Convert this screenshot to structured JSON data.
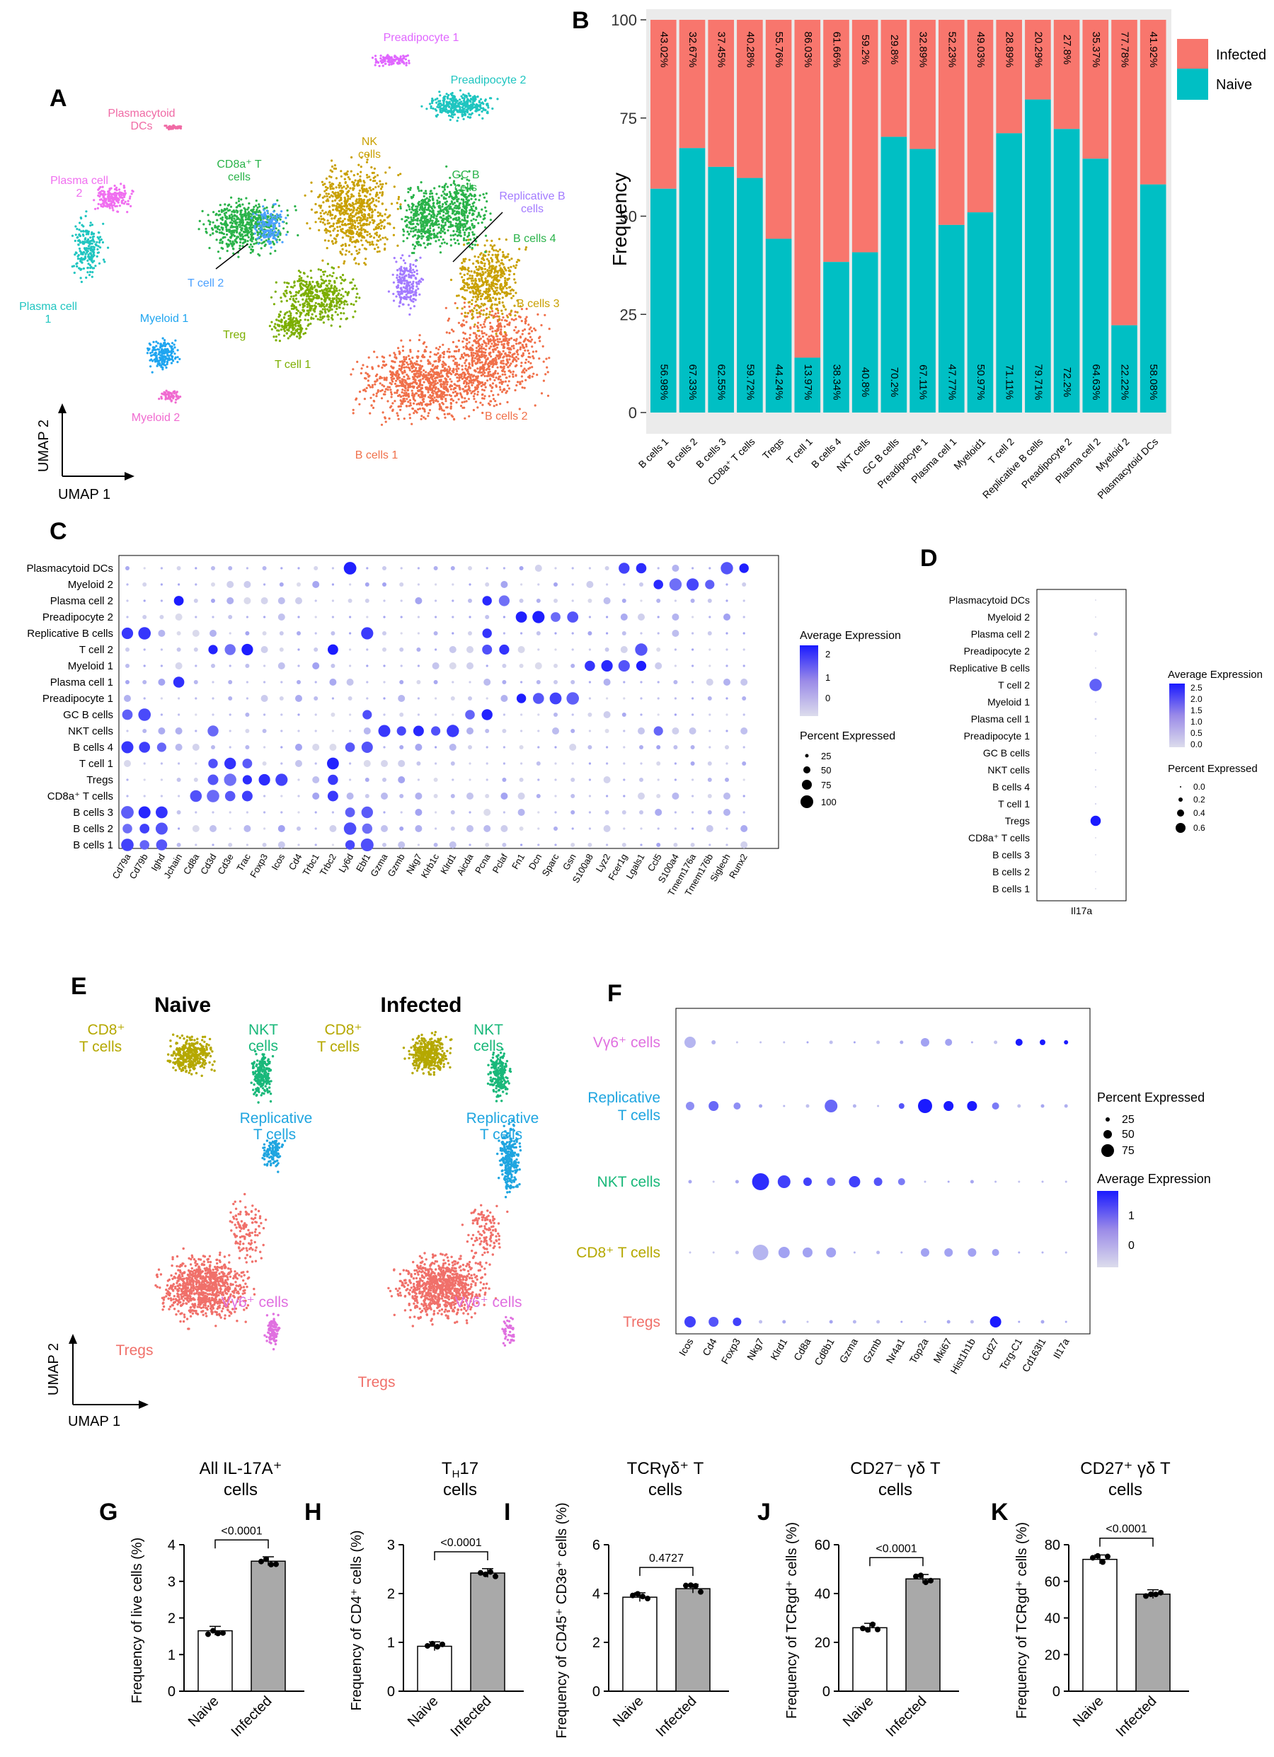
{
  "panels": {
    "A": "A",
    "B": "B",
    "C": "C",
    "D": "D",
    "E": "E",
    "F": "F",
    "G": "G",
    "H": "H",
    "I": "I",
    "J": "J",
    "K": "K"
  },
  "colors": {
    "infected": "#F8766D",
    "naive": "#00BFC4",
    "bar_naive": "#ffffff",
    "bar_infected": "#a9a9a9",
    "dot_low": "#d9d9ec",
    "dot_high": "#0000ff"
  },
  "panel_a": {
    "axis_y": "UMAP 2",
    "axis_x": "UMAP 1",
    "clusters": [
      {
        "label": "Preadipocyte 1",
        "color": "#e066ff"
      },
      {
        "label": "Preadipocyte 2",
        "color": "#1fc5c0"
      },
      {
        "label": "Plasmacytoid DCs",
        "color": "#f06aa5"
      },
      {
        "label": "NK cells",
        "color": "#c9a000"
      },
      {
        "label": "CD8a⁺ T cells",
        "color": "#2ab34a"
      },
      {
        "label": "GC B cells",
        "color": "#2ab34a"
      },
      {
        "label": "Replicative B cells",
        "color": "#a37bff"
      },
      {
        "label": "Plasma cell 2",
        "color": "#f06ff0"
      },
      {
        "label": "B cells 4",
        "color": "#2ab34a"
      },
      {
        "label": "T cell 2",
        "color": "#4aa0ff"
      },
      {
        "label": "B cells 3",
        "color": "#c9a000"
      },
      {
        "label": "Plasma cell 1",
        "color": "#1fc5c0"
      },
      {
        "label": "Myeloid 1",
        "color": "#1fa5f0"
      },
      {
        "label": "Treg",
        "color": "#7cae00"
      },
      {
        "label": "T cell 1",
        "color": "#7cae00"
      },
      {
        "label": "Myeloid 2",
        "color": "#f06ad0"
      },
      {
        "label": "B cells 2",
        "color": "#f0704a"
      },
      {
        "label": "B cells 1",
        "color": "#f0704a"
      }
    ]
  },
  "chart_data": [
    {
      "id": "B",
      "type": "bar",
      "stacked": true,
      "ylabel": "Frequency",
      "ylim": [
        0,
        100
      ],
      "yticks": [
        0,
        25,
        50,
        75,
        100
      ],
      "legend": [
        "Infected",
        "Naive"
      ],
      "categories": [
        "B cells 1",
        "B cells 2",
        "B cells 3",
        "CD8a⁺ T cells",
        "Tregs",
        "T cell 1",
        "B cells 4",
        "NKT cells",
        "GC B cells",
        "Preadipocyte 1",
        "Plasma cell 1",
        "Myeloid1",
        "T cell 2",
        "Replicative B cells",
        "Preadipocyte 2",
        "Plasma cell 2",
        "Myeloid 2",
        "Plasmacytoid DCs"
      ],
      "series": [
        {
          "name": "Naive",
          "values": [
            56.98,
            67.33,
            62.55,
            59.72,
            44.24,
            13.97,
            38.34,
            40.8,
            70.2,
            67.11,
            47.77,
            50.97,
            71.11,
            79.71,
            72.2,
            64.63,
            22.22,
            58.08
          ],
          "labels": [
            "56.98%",
            "67.33%",
            "62.55%",
            "59.72%",
            "44.24%",
            "13.97%",
            "38.34%",
            "40.8%",
            "70.2%",
            "67.11%",
            "47.77%",
            "50.97%",
            "71.11%",
            "79.71%",
            "72.2%",
            "64.63%",
            "22.22%",
            "58.08%"
          ]
        },
        {
          "name": "Infected",
          "values": [
            43.02,
            32.67,
            37.45,
            40.28,
            55.76,
            86.03,
            61.66,
            59.2,
            29.8,
            32.89,
            52.23,
            49.03,
            28.89,
            20.29,
            27.8,
            35.37,
            77.78,
            41.92
          ],
          "labels": [
            "43.02%",
            "32.67%",
            "37.45%",
            "40.28%",
            "55.76%",
            "86.03%",
            "61.66%",
            "59.2%",
            "29.8%",
            "32.89%",
            "52.23%",
            "49.03%",
            "28.89%",
            "20.29%",
            "27.8%",
            "35.37%",
            "77.78%",
            "41.92%"
          ]
        }
      ]
    },
    {
      "id": "C",
      "type": "dot",
      "rows": [
        "Plasmacytoid DCs",
        "Myeloid 2",
        "Plasma cell 2",
        "Preadipocyte 2",
        "Replicative B cells",
        "T cell 2",
        "Myeloid 1",
        "Plasma cell 1",
        "Preadipocyte 1",
        "GC B cells",
        "NKT cells",
        "B cells 4",
        "T cell 1",
        "Tregs",
        "CD8a⁺ T cells",
        "B cells 3",
        "B cells 2",
        "B cells 1"
      ],
      "genes": [
        "Cd79a",
        "Cd79b",
        "Ighd",
        "Jchain",
        "Cd8a",
        "Cd3d",
        "Cd3e",
        "Trac",
        "Foxp3",
        "Icos",
        "Cd4",
        "Trbc1",
        "Trbc2",
        "Ly6d",
        "Ebf1",
        "Gzma",
        "Gzmb",
        "Nkg7",
        "Klrb1c",
        "Klrd1",
        "Aicda",
        "Pcna",
        "Pclaf",
        "Fn1",
        "Dcn",
        "Sparc",
        "Gsn",
        "S100a8",
        "Lyz2",
        "Fcer1g",
        "Lgals1",
        "Ccl5",
        "S100a4",
        "Tmem176a",
        "Tmem176b",
        "Siglech",
        "Runx2"
      ],
      "high": [
        {
          "row": "Plasmacytoid DCs",
          "genes": [
            "Ly6d",
            "Siglech",
            "Runx2",
            "Lgals1",
            "Fcer1g"
          ]
        },
        {
          "row": "Myeloid 2",
          "genes": [
            "Ccl5",
            "S100a4",
            "Tmem176a",
            "Tmem176b"
          ]
        },
        {
          "row": "Plasma cell 2",
          "genes": [
            "Jchain",
            "Pcna",
            "Pclaf"
          ]
        },
        {
          "row": "Preadipocyte 2",
          "genes": [
            "Fn1",
            "Dcn",
            "Sparc",
            "Gsn"
          ]
        },
        {
          "row": "Replicative B cells",
          "genes": [
            "Cd79a",
            "Cd79b",
            "Pcna",
            "Ebf1"
          ]
        },
        {
          "row": "T cell 2",
          "genes": [
            "Cd3d",
            "Cd3e",
            "Trac",
            "Trbc2",
            "Pcna",
            "Pclaf",
            "Lgals1"
          ]
        },
        {
          "row": "Myeloid 1",
          "genes": [
            "S100a8",
            "Lyz2",
            "Fcer1g",
            "Lgals1"
          ]
        },
        {
          "row": "Plasma cell 1",
          "genes": [
            "Jchain"
          ]
        },
        {
          "row": "Preadipocyte 1",
          "genes": [
            "Fn1",
            "Dcn",
            "Sparc",
            "Gsn"
          ]
        },
        {
          "row": "GC B cells",
          "genes": [
            "Cd79a",
            "Cd79b",
            "Aicda",
            "Pcna",
            "Ebf1"
          ]
        },
        {
          "row": "NKT cells",
          "genes": [
            "Nkg7",
            "Klrb1c",
            "Klrd1",
            "Gzma",
            "Gzmb",
            "Ccl5",
            "Cd3d"
          ]
        },
        {
          "row": "B cells 4",
          "genes": [
            "Cd79a",
            "Cd79b",
            "Ighd",
            "Ly6d",
            "Ebf1"
          ]
        },
        {
          "row": "T cell 1",
          "genes": [
            "Cd3d",
            "Cd3e",
            "Trac",
            "Trbc2"
          ]
        },
        {
          "row": "Tregs",
          "genes": [
            "Cd3d",
            "Cd3e",
            "Trac",
            "Foxp3",
            "Icos",
            "Trbc2"
          ]
        },
        {
          "row": "CD8a⁺ T cells",
          "genes": [
            "Cd8a",
            "Cd3d",
            "Cd3e",
            "Trac",
            "Trbc2"
          ]
        },
        {
          "row": "B cells 3",
          "genes": [
            "Cd79a",
            "Cd79b",
            "Ighd",
            "Ly6d",
            "Ebf1"
          ]
        },
        {
          "row": "B cells 2",
          "genes": [
            "Cd79a",
            "Cd79b",
            "Ighd",
            "Ly6d",
            "Ebf1"
          ]
        },
        {
          "row": "B cells 1",
          "genes": [
            "Cd79a",
            "Cd79b",
            "Ighd",
            "Ly6d",
            "Ebf1"
          ]
        }
      ],
      "legend_expression_title": "Average Expression",
      "legend_expression_ticks": [
        "2",
        "1",
        "0"
      ],
      "legend_percent_title": "Percent Expressed",
      "legend_percent_values": [
        "25",
        "50",
        "75",
        "100"
      ]
    },
    {
      "id": "D",
      "type": "dot",
      "gene": "Il17a",
      "rows": [
        "Plasmacytoid DCs",
        "Myeloid 2",
        "Plasma cell 2",
        "Preadipocyte 2",
        "Replicative B cells",
        "T cell 2",
        "Myeloid 1",
        "Plasma cell 1",
        "Preadipocyte 1",
        "GC B cells",
        "NKT cells",
        "B cells 4",
        "T cell 1",
        "Tregs",
        "CD8a⁺ T cells",
        "B cells 3",
        "B cells 2",
        "B cells 1"
      ],
      "pct": [
        0.0,
        0.0,
        0.12,
        0.0,
        0.0,
        0.55,
        0.0,
        0.03,
        0.0,
        0.01,
        0.01,
        0.01,
        0.01,
        0.45,
        0.0,
        0.0,
        0.0,
        0.0
      ],
      "expr": [
        0.0,
        0.0,
        0.3,
        0.0,
        0.0,
        1.6,
        0.0,
        0.2,
        0.0,
        0.1,
        0.1,
        0.1,
        0.1,
        2.5,
        0.0,
        0.0,
        0.0,
        0.0
      ],
      "legend_expression_title": "Average Expression",
      "legend_expression_ticks": [
        "2.5",
        "2.0",
        "1.5",
        "1.0",
        "0.5",
        "0.0"
      ],
      "legend_percent_title": "Percent Expressed",
      "legend_percent_values": [
        "0.0",
        "0.2",
        "0.4",
        "0.6"
      ]
    },
    {
      "id": "F",
      "type": "dot",
      "rows": [
        "Vγ6⁺ cells",
        "Replicative T cells",
        "NKT cells",
        "CD8⁺ T cells",
        "Tregs"
      ],
      "row_colors": [
        "#e070e0",
        "#1fa5e0",
        "#19b87a",
        "#b5a800",
        "#f0706a"
      ],
      "genes": [
        "Icos",
        "Cd4",
        "Foxp3",
        "Nkg7",
        "Klrd1",
        "Cd8a",
        "Cd8b1",
        "Gzma",
        "Gzmb",
        "Nr4a1",
        "Top2a",
        "Mki67",
        "Hist1h1b",
        "Cd27",
        "Tcrg-C1",
        "Cd163l1",
        "Il17a"
      ],
      "legend_percent_title": "Percent Expressed",
      "legend_percent_values": [
        "25",
        "50",
        "75"
      ],
      "legend_expression_title": "Average Expression",
      "legend_expression_ticks": [
        "1",
        "0"
      ]
    },
    {
      "id": "G",
      "type": "bar",
      "title": "All IL-17A⁺ cells",
      "ylabel": "Frequency of live cells (%)",
      "categories": [
        "Naive",
        "Infected"
      ],
      "values": [
        1.65,
        3.55
      ],
      "ylim": [
        0,
        4
      ],
      "yticks": [
        0,
        1,
        2,
        3,
        4
      ],
      "pvalue": "<0.0001"
    },
    {
      "id": "H",
      "type": "bar",
      "title": "TH17 cells",
      "ylabel": "Frequency of CD4⁺ cells (%)",
      "categories": [
        "Naive",
        "Infected"
      ],
      "values": [
        0.92,
        2.42
      ],
      "ylim": [
        0,
        3
      ],
      "yticks": [
        0,
        1,
        2,
        3
      ],
      "pvalue": "<0.0001"
    },
    {
      "id": "I",
      "type": "bar",
      "title": "TCRγδ⁺ T cells",
      "ylabel": "Frequency of CD45⁺ CD3e⁺ cells (%)",
      "categories": [
        "Naive",
        "Infected"
      ],
      "values": [
        3.85,
        4.2
      ],
      "ylim": [
        0,
        6
      ],
      "yticks": [
        0,
        2,
        4,
        6
      ],
      "pvalue": "0.4727"
    },
    {
      "id": "J",
      "type": "bar",
      "title": "CD27⁻ γδ T cells",
      "ylabel": "Frequency of TCRgd⁺ cells (%)",
      "categories": [
        "Naive",
        "Infected"
      ],
      "values": [
        26,
        46
      ],
      "ylim": [
        0,
        60
      ],
      "yticks": [
        0,
        20,
        40,
        60
      ],
      "pvalue": "<0.0001"
    },
    {
      "id": "K",
      "type": "bar",
      "title": "CD27⁺ γδ T cells",
      "ylabel": "Frequency of TCRgd⁺ cells (%)",
      "categories": [
        "Naive",
        "Infected"
      ],
      "values": [
        72,
        53
      ],
      "ylim": [
        0,
        80
      ],
      "yticks": [
        0,
        20,
        40,
        60,
        80
      ],
      "pvalue": "<0.0001"
    }
  ],
  "panel_e": {
    "title_naive": "Naive",
    "title_infected": "Infected",
    "axis_y": "UMAP 2",
    "axis_x": "UMAP 1",
    "labels": [
      {
        "text": "CD8⁺",
        "color": "#b5a800"
      },
      {
        "text": "T cells",
        "color": "#b5a800"
      },
      {
        "text": "NKT",
        "color": "#19b87a"
      },
      {
        "text": "cells",
        "color": "#19b87a"
      },
      {
        "text": "Replicative",
        "color": "#1fa5e0"
      },
      {
        "text": "T cells",
        "color": "#1fa5e0"
      },
      {
        "text": "Vγ6⁺ cells",
        "color": "#e070e0"
      },
      {
        "text": "Tregs",
        "color": "#f0706a"
      }
    ]
  }
}
